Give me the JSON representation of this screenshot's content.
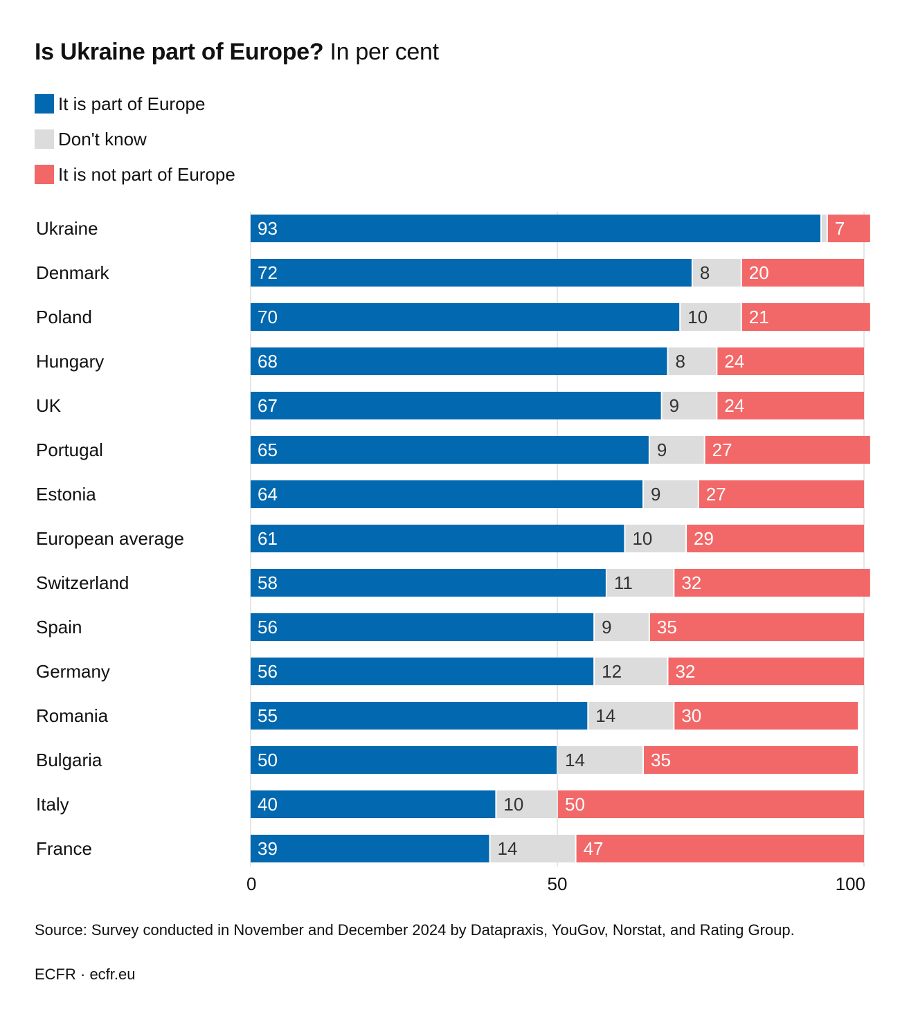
{
  "header": {
    "title_bold": "Is Ukraine part of Europe?",
    "title_sub": " In per cent"
  },
  "footer": {
    "source": "Source: Survey conducted in November and December 2024 by Datapraxis, YouGov, Norstat, and Rating Group.",
    "credit": "ECFR · ecfr.eu"
  },
  "colors": {
    "part": "#0268b0",
    "dont_know": "#dcdcdc",
    "not_part": "#f26868",
    "grid": "#e6e6e6"
  },
  "chart_data": {
    "type": "bar",
    "orientation": "horizontal",
    "stacked": true,
    "title": "Is Ukraine part of Europe? In per cent",
    "xlabel": "",
    "ylabel": "",
    "xlim": [
      0,
      100
    ],
    "xticks": [
      0,
      50,
      100
    ],
    "grid": true,
    "legend_position": "top-left",
    "categories": [
      "Ukraine",
      "Denmark",
      "Poland",
      "Hungary",
      "UK",
      "Portugal",
      "Estonia",
      "European average",
      "Switzerland",
      "Spain",
      "Germany",
      "Romania",
      "Bulgaria",
      "Italy",
      "France"
    ],
    "series": [
      {
        "name": "It is part of Europe",
        "key": "part",
        "values": [
          93,
          72,
          70,
          68,
          67,
          65,
          64,
          61,
          58,
          56,
          56,
          55,
          50,
          40,
          39
        ],
        "labels": [
          "93",
          "72",
          "70",
          "68",
          "67",
          "65",
          "64",
          "61",
          "58",
          "56",
          "56",
          "55",
          "50",
          "40",
          "39"
        ]
      },
      {
        "name": "Don't know",
        "key": "dont_know",
        "values": [
          1,
          8,
          10,
          8,
          9,
          9,
          9,
          10,
          11,
          9,
          12,
          14,
          14,
          10,
          14
        ],
        "labels": [
          "",
          "8",
          "10",
          "8",
          "9",
          "9",
          "9",
          "10",
          "11",
          "9",
          "12",
          "14",
          "14",
          "10",
          "14"
        ]
      },
      {
        "name": "It is not part of Europe",
        "key": "not_part",
        "values": [
          7,
          20,
          21,
          24,
          24,
          27,
          27,
          29,
          32,
          35,
          32,
          30,
          35,
          50,
          47
        ],
        "labels": [
          "7",
          "20",
          "21",
          "24",
          "24",
          "27",
          "27",
          "29",
          "32",
          "35",
          "32",
          "30",
          "35",
          "50",
          "47"
        ]
      }
    ]
  }
}
